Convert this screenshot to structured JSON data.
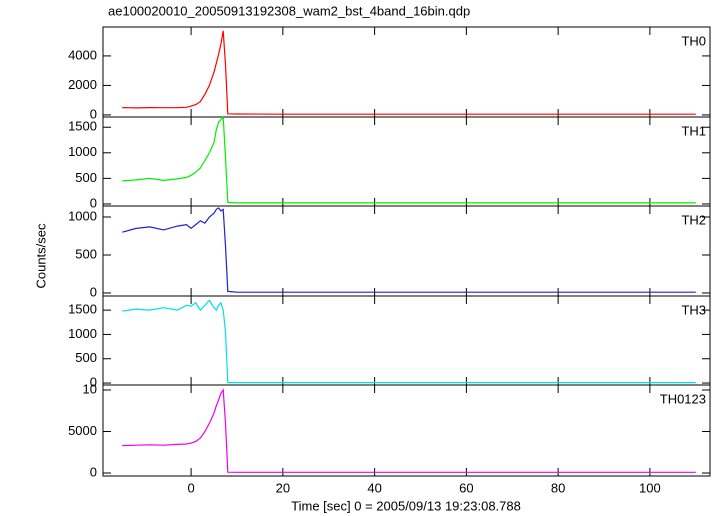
{
  "title": "ae100020010_20050913192308_wam2_bst_4band_16bin.qdp",
  "xlabel": "Time [sec] 0 = 2005/09/13 19:23:08.788",
  "ylabel": "Counts/sec",
  "chart_data": [
    {
      "type": "line",
      "label": "TH0",
      "color": "#ff0000",
      "xlim": [
        -19.2,
        113.1
      ],
      "xticks": [
        0,
        20,
        40,
        60,
        80,
        100
      ],
      "ylim": [
        -140,
        5960
      ],
      "yticks": [
        0,
        2000,
        4000
      ],
      "x": [
        -15,
        -12,
        -9,
        -6,
        -3,
        -1,
        0,
        1,
        2,
        3,
        4,
        5,
        5.5,
        6,
        6.5,
        7,
        7.5,
        8,
        10,
        20,
        40,
        60,
        80,
        100,
        110
      ],
      "values": [
        500,
        480,
        500,
        490,
        500,
        520,
        600,
        700,
        900,
        1400,
        2000,
        2900,
        3500,
        4100,
        4800,
        5700,
        3400,
        80,
        60,
        50,
        50,
        50,
        50,
        50,
        50
      ]
    },
    {
      "type": "line",
      "label": "TH1",
      "color": "#00ee00",
      "xlim": [
        -19.2,
        113.1
      ],
      "xticks": [
        0,
        20,
        40,
        60,
        80,
        100
      ],
      "ylim": [
        -40,
        1700
      ],
      "yticks": [
        0,
        500,
        1000,
        1500
      ],
      "x": [
        -15,
        -12,
        -9,
        -6,
        -3,
        -1,
        0,
        1,
        2,
        3,
        4,
        5,
        5.5,
        6,
        6.5,
        7,
        7.5,
        8,
        10,
        20,
        40,
        60,
        80,
        100,
        110
      ],
      "values": [
        450,
        470,
        500,
        460,
        490,
        520,
        560,
        620,
        700,
        850,
        1000,
        1200,
        1450,
        1600,
        1650,
        1700,
        900,
        30,
        20,
        20,
        20,
        20,
        20,
        20,
        20
      ]
    },
    {
      "type": "line",
      "label": "TH2",
      "color": "#2020d0",
      "xlim": [
        -19.2,
        113.1
      ],
      "xticks": [
        0,
        20,
        40,
        60,
        80,
        100
      ],
      "ylim": [
        -40,
        1145
      ],
      "yticks": [
        0,
        500,
        1000
      ],
      "x": [
        -15,
        -12,
        -9,
        -6,
        -3,
        -1,
        0,
        1,
        2,
        3,
        4,
        5,
        5.5,
        6,
        6.5,
        7,
        7.5,
        8,
        10,
        20,
        40,
        60,
        80,
        100,
        110
      ],
      "values": [
        800,
        850,
        870,
        830,
        880,
        900,
        850,
        900,
        950,
        920,
        1000,
        1050,
        1100,
        1120,
        1080,
        1100,
        620,
        20,
        10,
        10,
        10,
        10,
        10,
        10,
        10
      ]
    },
    {
      "type": "line",
      "label": "TH3",
      "color": "#00e0e0",
      "xlim": [
        -19.2,
        113.1
      ],
      "xticks": [
        0,
        20,
        40,
        60,
        80,
        100
      ],
      "ylim": [
        -40,
        1790
      ],
      "yticks": [
        0,
        500,
        1000,
        1500
      ],
      "x": [
        -15,
        -12,
        -9,
        -6,
        -3,
        -1,
        0,
        1,
        2,
        3,
        4,
        5,
        5.5,
        6,
        6.5,
        7,
        7.5,
        8,
        10,
        20,
        40,
        60,
        80,
        100,
        110
      ],
      "values": [
        1480,
        1520,
        1500,
        1550,
        1500,
        1600,
        1580,
        1650,
        1500,
        1600,
        1700,
        1550,
        1500,
        1600,
        1650,
        1500,
        1050,
        10,
        10,
        10,
        10,
        10,
        10,
        10,
        10
      ]
    },
    {
      "type": "line",
      "label": "TH0123",
      "color": "#ee00ee",
      "xlim": [
        -19.2,
        113.1
      ],
      "xticks": [
        0,
        20,
        40,
        60,
        80,
        100
      ],
      "ylim": [
        -360,
        10600
      ],
      "yticks": [
        0,
        5000,
        {
          "value": 10000,
          "label": "10"
        }
      ],
      "x": [
        -15,
        -12,
        -9,
        -6,
        -3,
        -1,
        0,
        1,
        2,
        3,
        4,
        5,
        5.5,
        6,
        6.5,
        7,
        7.5,
        8,
        10,
        20,
        40,
        60,
        80,
        100,
        110
      ],
      "values": [
        3300,
        3350,
        3400,
        3350,
        3450,
        3500,
        3600,
        3800,
        4200,
        5000,
        6000,
        7200,
        8100,
        8800,
        9600,
        10000,
        6000,
        100,
        80,
        80,
        80,
        80,
        80,
        80,
        80
      ]
    }
  ]
}
